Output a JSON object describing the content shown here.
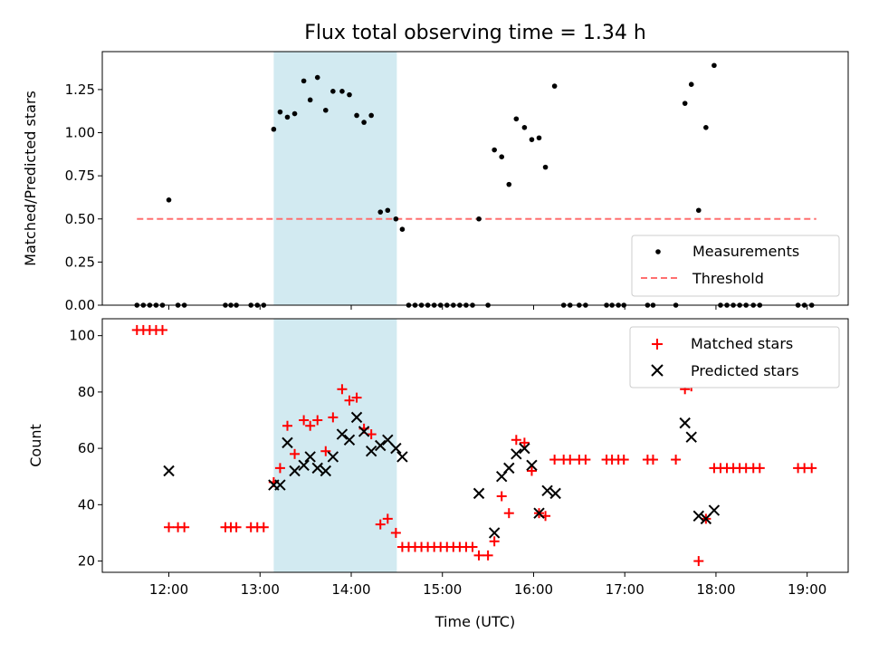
{
  "title": "Flux total observing time = 1.34 h",
  "colors": {
    "measurement": "#000000",
    "threshold": "#ff6f6f",
    "matched": "#ff0000",
    "predicted": "#000000",
    "highlight": "#add8e6"
  },
  "chart_data": [
    {
      "type": "scatter",
      "ylabel": "Matched/Predicted stars",
      "xlabel": "",
      "xlim": [
        11.27,
        19.45
      ],
      "ylim": [
        0,
        1.47
      ],
      "yticks": [
        "0.00",
        "0.25",
        "0.50",
        "0.75",
        "1.00",
        "1.25"
      ],
      "highlight_span": [
        13.15,
        14.5
      ],
      "legend": {
        "position": "lower-right",
        "entries": [
          "Measurements",
          "Threshold"
        ]
      },
      "threshold": {
        "name": "Threshold",
        "value": 0.5,
        "x": [
          11.65,
          19.1
        ]
      },
      "series": [
        {
          "name": "Measurements",
          "x": [
            11.65,
            11.72,
            11.79,
            11.86,
            11.93,
            12.0,
            12.1,
            12.17,
            12.62,
            12.68,
            12.74,
            12.9,
            12.97,
            13.04,
            13.15,
            13.22,
            13.3,
            13.38,
            13.48,
            13.55,
            13.63,
            13.72,
            13.8,
            13.9,
            13.98,
            14.06,
            14.14,
            14.22,
            14.32,
            14.4,
            14.49,
            14.56,
            14.63,
            14.7,
            14.77,
            14.84,
            14.91,
            14.98,
            15.05,
            15.12,
            15.19,
            15.26,
            15.33,
            15.4,
            15.5,
            15.57,
            15.65,
            15.73,
            15.81,
            15.9,
            15.98,
            16.06,
            16.13,
            16.23,
            16.33,
            16.4,
            16.5,
            16.57,
            16.8,
            16.86,
            16.93,
            16.99,
            17.25,
            17.31,
            17.56,
            17.66,
            17.73,
            17.81,
            17.89,
            17.98,
            18.05,
            18.12,
            18.19,
            18.26,
            18.33,
            18.41,
            18.48,
            18.9,
            18.97,
            19.05
          ],
          "y": [
            0,
            0,
            0,
            0,
            0,
            0.61,
            0,
            0,
            0,
            0,
            0,
            0,
            0,
            0,
            1.02,
            1.12,
            1.09,
            1.11,
            1.3,
            1.19,
            1.32,
            1.13,
            1.24,
            1.24,
            1.22,
            1.1,
            1.06,
            1.1,
            0.54,
            0.55,
            0.5,
            0.44,
            0,
            0,
            0,
            0,
            0,
            0,
            0,
            0,
            0,
            0,
            0,
            0.5,
            0,
            0.9,
            0.86,
            0.7,
            1.08,
            1.03,
            0.96,
            0.97,
            0.8,
            1.27,
            0,
            0,
            0,
            0,
            0,
            0,
            0,
            0,
            0,
            0,
            0,
            1.17,
            1.28,
            0.55,
            1.03,
            1.39,
            0,
            0,
            0,
            0,
            0,
            0,
            0,
            0,
            0,
            0
          ]
        }
      ]
    },
    {
      "type": "scatter",
      "ylabel": "Count",
      "xlabel": "Time (UTC)",
      "xlim": [
        11.27,
        19.45
      ],
      "ylim": [
        16,
        106
      ],
      "yticks": [
        "20",
        "40",
        "60",
        "80",
        "100"
      ],
      "xticks": [
        "12:00",
        "13:00",
        "14:00",
        "15:00",
        "16:00",
        "17:00",
        "18:00",
        "19:00"
      ],
      "highlight_span": [
        13.15,
        14.5
      ],
      "legend": {
        "position": "upper-right",
        "entries": [
          "Matched stars",
          "Predicted stars"
        ]
      },
      "series": [
        {
          "name": "Matched stars",
          "marker": "plus",
          "x": [
            11.65,
            11.72,
            11.79,
            11.86,
            11.93,
            12.0,
            12.1,
            12.17,
            12.62,
            12.68,
            12.74,
            12.9,
            12.97,
            13.04,
            13.15,
            13.22,
            13.3,
            13.38,
            13.48,
            13.55,
            13.63,
            13.72,
            13.8,
            13.9,
            13.98,
            14.06,
            14.14,
            14.22,
            14.32,
            14.4,
            14.49,
            14.56,
            14.63,
            14.7,
            14.77,
            14.84,
            14.91,
            14.98,
            15.05,
            15.12,
            15.19,
            15.26,
            15.33,
            15.4,
            15.5,
            15.57,
            15.65,
            15.73,
            15.81,
            15.9,
            15.98,
            16.06,
            16.13,
            16.23,
            16.33,
            16.4,
            16.5,
            16.57,
            16.8,
            16.86,
            16.93,
            16.99,
            17.25,
            17.31,
            17.56,
            17.66,
            17.73,
            17.81,
            17.89,
            17.98,
            18.05,
            18.12,
            18.19,
            18.26,
            18.33,
            18.41,
            18.48,
            18.9,
            18.97,
            19.05
          ],
          "y": [
            102,
            102,
            102,
            102,
            102,
            32,
            32,
            32,
            32,
            32,
            32,
            32,
            32,
            32,
            48,
            53,
            68,
            58,
            70,
            68,
            70,
            59,
            71,
            81,
            77,
            78,
            67,
            65,
            33,
            35,
            30,
            25,
            25,
            25,
            25,
            25,
            25,
            25,
            25,
            25,
            25,
            25,
            25,
            22,
            22,
            27,
            43,
            37,
            63,
            62,
            52,
            37,
            36,
            56,
            56,
            56,
            56,
            56,
            56,
            56,
            56,
            56,
            56,
            56,
            56,
            81,
            82,
            20,
            35,
            53,
            53,
            53,
            53,
            53,
            53,
            53,
            53,
            53,
            53,
            53
          ]
        },
        {
          "name": "Predicted stars",
          "marker": "x",
          "x": [
            12.0,
            13.15,
            13.22,
            13.3,
            13.38,
            13.48,
            13.55,
            13.63,
            13.72,
            13.8,
            13.9,
            13.98,
            14.06,
            14.14,
            14.22,
            14.32,
            14.4,
            14.49,
            14.56,
            15.4,
            15.57,
            15.65,
            15.73,
            15.81,
            15.9,
            15.98,
            16.06,
            16.15,
            16.24,
            17.66,
            17.73,
            17.81,
            17.89,
            17.98
          ],
          "y": [
            52,
            47,
            47,
            62,
            52,
            54,
            57,
            53,
            52,
            57,
            65,
            63,
            71,
            66,
            59,
            61,
            63,
            60,
            57,
            44,
            30,
            50,
            53,
            58,
            60,
            54,
            37,
            45,
            44,
            69,
            64,
            36,
            35,
            38
          ]
        }
      ]
    }
  ]
}
